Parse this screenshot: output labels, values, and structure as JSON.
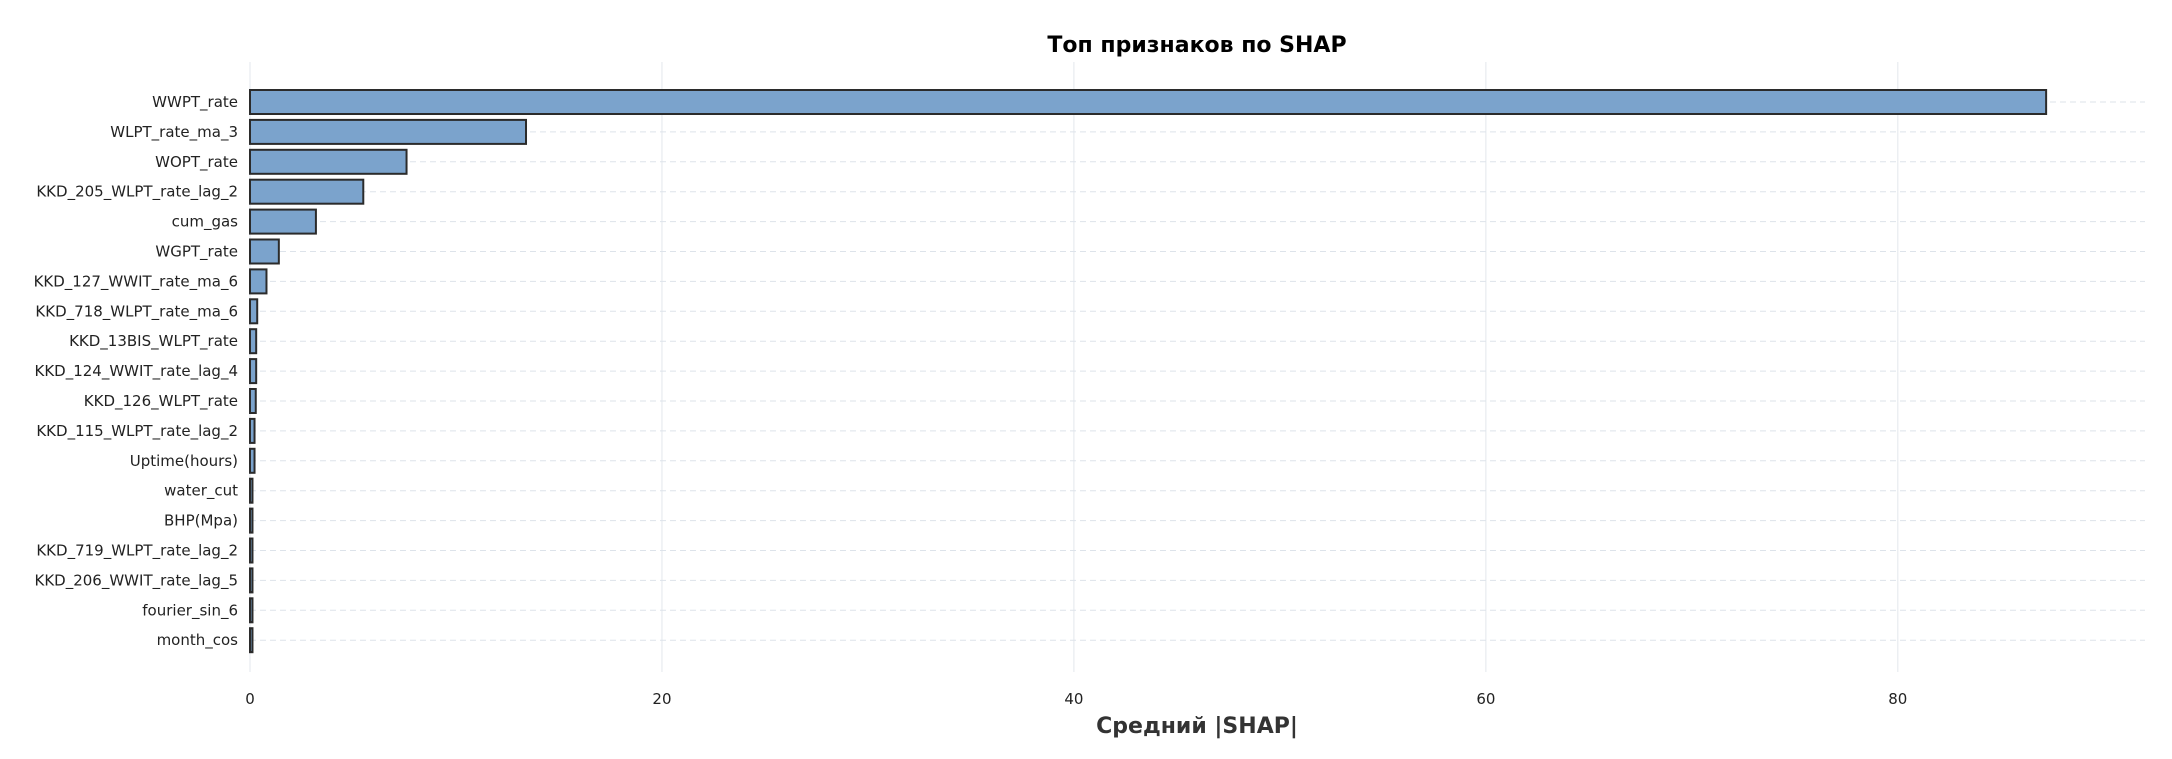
{
  "chart_data": {
    "type": "bar",
    "orientation": "horizontal",
    "title": "Топ признаков по SHAP",
    "xlabel": "Средний |SHAP|",
    "ylabel": "",
    "xlim": [
      0,
      92
    ],
    "xticks": [
      0,
      20,
      40,
      60,
      80
    ],
    "grid": true,
    "bar_color": "#7ba3cc",
    "edge_color": "#2b2b2b",
    "categories": [
      "WWPT_rate",
      "WLPT_rate_ma_3",
      "WOPT_rate",
      "KKD_205_WLPT_rate_lag_2",
      "cum_gas",
      "WGPT_rate",
      "KKD_127_WWIT_rate_ma_6",
      "KKD_718_WLPT_rate_ma_6",
      "KKD_13BIS_WLPT_rate",
      "KKD_124_WWIT_rate_lag_4",
      "KKD_126_WLPT_rate",
      "KKD_115_WLPT_rate_lag_2",
      "Uptime(hours)",
      "water_cut",
      "BHP(Mpa)",
      "KKD_719_WLPT_rate_lag_2",
      "KKD_206_WWIT_rate_lag_5",
      "fourier_sin_6",
      "month_cos"
    ],
    "values": [
      87.2,
      13.4,
      7.6,
      5.5,
      3.2,
      1.4,
      0.8,
      0.35,
      0.3,
      0.3,
      0.28,
      0.22,
      0.22,
      0.12,
      0.12,
      0.12,
      0.12,
      0.12,
      0.12
    ]
  }
}
